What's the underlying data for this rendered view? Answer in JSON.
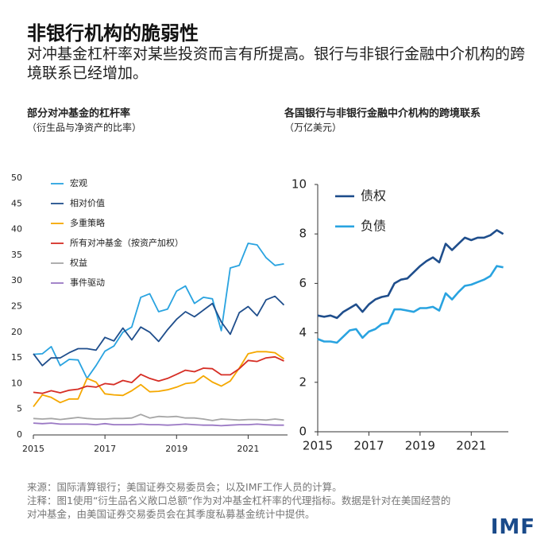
{
  "header": {
    "title": "非银行机构的脆弱性",
    "subtitle": "对冲基金杠杆率对某些投资而言有所提高。银行与非银行金融中介机构的跨境联系已经增加。"
  },
  "footer": {
    "source": "来源：国际清算银行；美国证券交易委员会；以及IMF工作人员的计算。",
    "note": "注释：图1使用“衍生品名义敞口总额”作为对冲基金杠杆率的代理指标。数据是针对在美国经营的对冲基金，由美国证券交易委员会在其季度私募基金统计中提供。",
    "logo": "IMF"
  },
  "chart_data": [
    {
      "type": "line",
      "title": "部分对冲基金的杠杆率",
      "subtitle": "（衍生品与净资产的比率）",
      "x": [
        2015,
        2015.25,
        2015.5,
        2015.75,
        2016,
        2016.25,
        2016.5,
        2016.75,
        2017,
        2017.25,
        2017.5,
        2017.75,
        2018,
        2018.25,
        2018.5,
        2018.75,
        2019,
        2019.25,
        2019.5,
        2019.75,
        2020,
        2020.25,
        2020.5,
        2020.75,
        2021,
        2021.25,
        2021.5,
        2021.75,
        2022
      ],
      "xlim": [
        2015,
        2022.1
      ],
      "xticks": [
        2015,
        2017,
        2019,
        2021
      ],
      "ylim": [
        0,
        50
      ],
      "yticks": [
        0,
        5,
        10,
        15,
        20,
        25,
        30,
        35,
        40,
        45,
        50
      ],
      "legend": "upper left",
      "grid": false,
      "series": [
        {
          "name": "宏观",
          "color": "#29a3e0",
          "values": [
            15.7,
            15.8,
            17.2,
            13.5,
            14.7,
            14.6,
            11,
            13.5,
            16.3,
            17.3,
            20,
            21,
            26.8,
            27.5,
            24,
            24.5,
            28,
            29,
            25.6,
            26.8,
            26.5,
            20.3,
            32.5,
            33,
            37.3,
            37,
            34.5,
            33,
            33.3
          ]
        },
        {
          "name": "相对价值",
          "color": "#1f4e8c",
          "values": [
            15.8,
            13.5,
            15,
            15,
            16,
            16.8,
            16.8,
            16.5,
            19,
            18.3,
            20.8,
            18.5,
            21,
            20,
            18.2,
            20.5,
            22.5,
            24,
            23,
            24.3,
            25.6,
            22,
            19.6,
            23.8,
            25,
            23.2,
            26.3,
            27,
            25.3
          ]
        },
        {
          "name": "多重策略",
          "color": "#f5a800",
          "values": [
            5.5,
            7.8,
            7.3,
            6.3,
            7,
            7,
            11,
            10.3,
            8,
            7.8,
            7.7,
            8.6,
            9.8,
            8.4,
            8.5,
            8.8,
            9.3,
            10,
            10.2,
            11.5,
            10.3,
            9.5,
            10.5,
            13,
            15.8,
            16.2,
            16.2,
            16,
            14.8
          ]
        },
        {
          "name": "所有对冲基金（按资产加权）",
          "color": "#d62e25",
          "values": [
            8.3,
            8.1,
            8.6,
            8.2,
            8.7,
            8.9,
            9.5,
            9.3,
            10,
            9.8,
            10.6,
            10.2,
            11.8,
            11,
            10.5,
            11,
            11.8,
            12.6,
            12.3,
            13,
            12.9,
            11.7,
            11.7,
            12.9,
            14.5,
            14.3,
            15,
            15.2,
            14.4
          ]
        },
        {
          "name": "权益",
          "color": "#a6a6a6",
          "values": [
            3.2,
            3.1,
            3.2,
            3,
            3.2,
            3.4,
            3.2,
            3.1,
            3.1,
            3.2,
            3.2,
            3.3,
            4,
            3.3,
            3.6,
            3.5,
            3.6,
            3.3,
            3.3,
            3.1,
            2.8,
            3.1,
            3,
            2.9,
            3,
            3,
            2.9,
            3.1,
            2.9
          ]
        },
        {
          "name": "事件驱动",
          "color": "#9a78c4",
          "values": [
            2.3,
            2.2,
            2.3,
            2.1,
            2.1,
            2.1,
            2.1,
            2,
            2.2,
            2,
            2,
            2,
            2.1,
            2,
            2,
            1.9,
            2,
            2.1,
            2,
            1.9,
            1.9,
            1.8,
            1.9,
            2,
            2,
            2.1,
            2,
            1.9,
            1.9
          ]
        }
      ]
    },
    {
      "type": "line",
      "title": "各国银行与非银行金融中介机构的跨境联系",
      "subtitle": "（万亿美元）",
      "x": [
        2015,
        2015.25,
        2015.5,
        2015.75,
        2016,
        2016.25,
        2016.5,
        2016.75,
        2017,
        2017.25,
        2017.5,
        2017.75,
        2018,
        2018.25,
        2018.5,
        2018.75,
        2019,
        2019.25,
        2019.5,
        2019.75,
        2020,
        2020.25,
        2020.5,
        2020.75,
        2021,
        2021.25,
        2021.5,
        2021.75,
        2022,
        2022.25
      ],
      "xlim": [
        2015,
        2022.45
      ],
      "xticks": [
        2015,
        2017,
        2019,
        2021
      ],
      "ylim": [
        0,
        10
      ],
      "yticks": [
        0,
        2,
        4,
        6,
        8,
        10
      ],
      "legend": "upper left",
      "grid": false,
      "series": [
        {
          "name": "债权",
          "color": "#1f4e8c",
          "values": [
            4.7,
            4.65,
            4.7,
            4.6,
            4.85,
            5.0,
            5.15,
            4.85,
            5.15,
            5.35,
            5.45,
            5.5,
            6.0,
            6.15,
            6.2,
            6.45,
            6.7,
            6.9,
            7.05,
            6.85,
            7.6,
            7.35,
            7.6,
            7.85,
            7.75,
            7.85,
            7.85,
            7.95,
            8.15,
            8.0
          ]
        },
        {
          "name": "负债",
          "color": "#29a3e0",
          "values": [
            3.75,
            3.65,
            3.65,
            3.6,
            3.85,
            4.1,
            4.15,
            3.8,
            4.05,
            4.15,
            4.35,
            4.4,
            4.95,
            4.95,
            4.9,
            4.85,
            5.0,
            5.0,
            5.05,
            4.9,
            5.6,
            5.35,
            5.65,
            5.9,
            5.95,
            6.05,
            6.15,
            6.3,
            6.7,
            6.65
          ]
        }
      ]
    }
  ]
}
